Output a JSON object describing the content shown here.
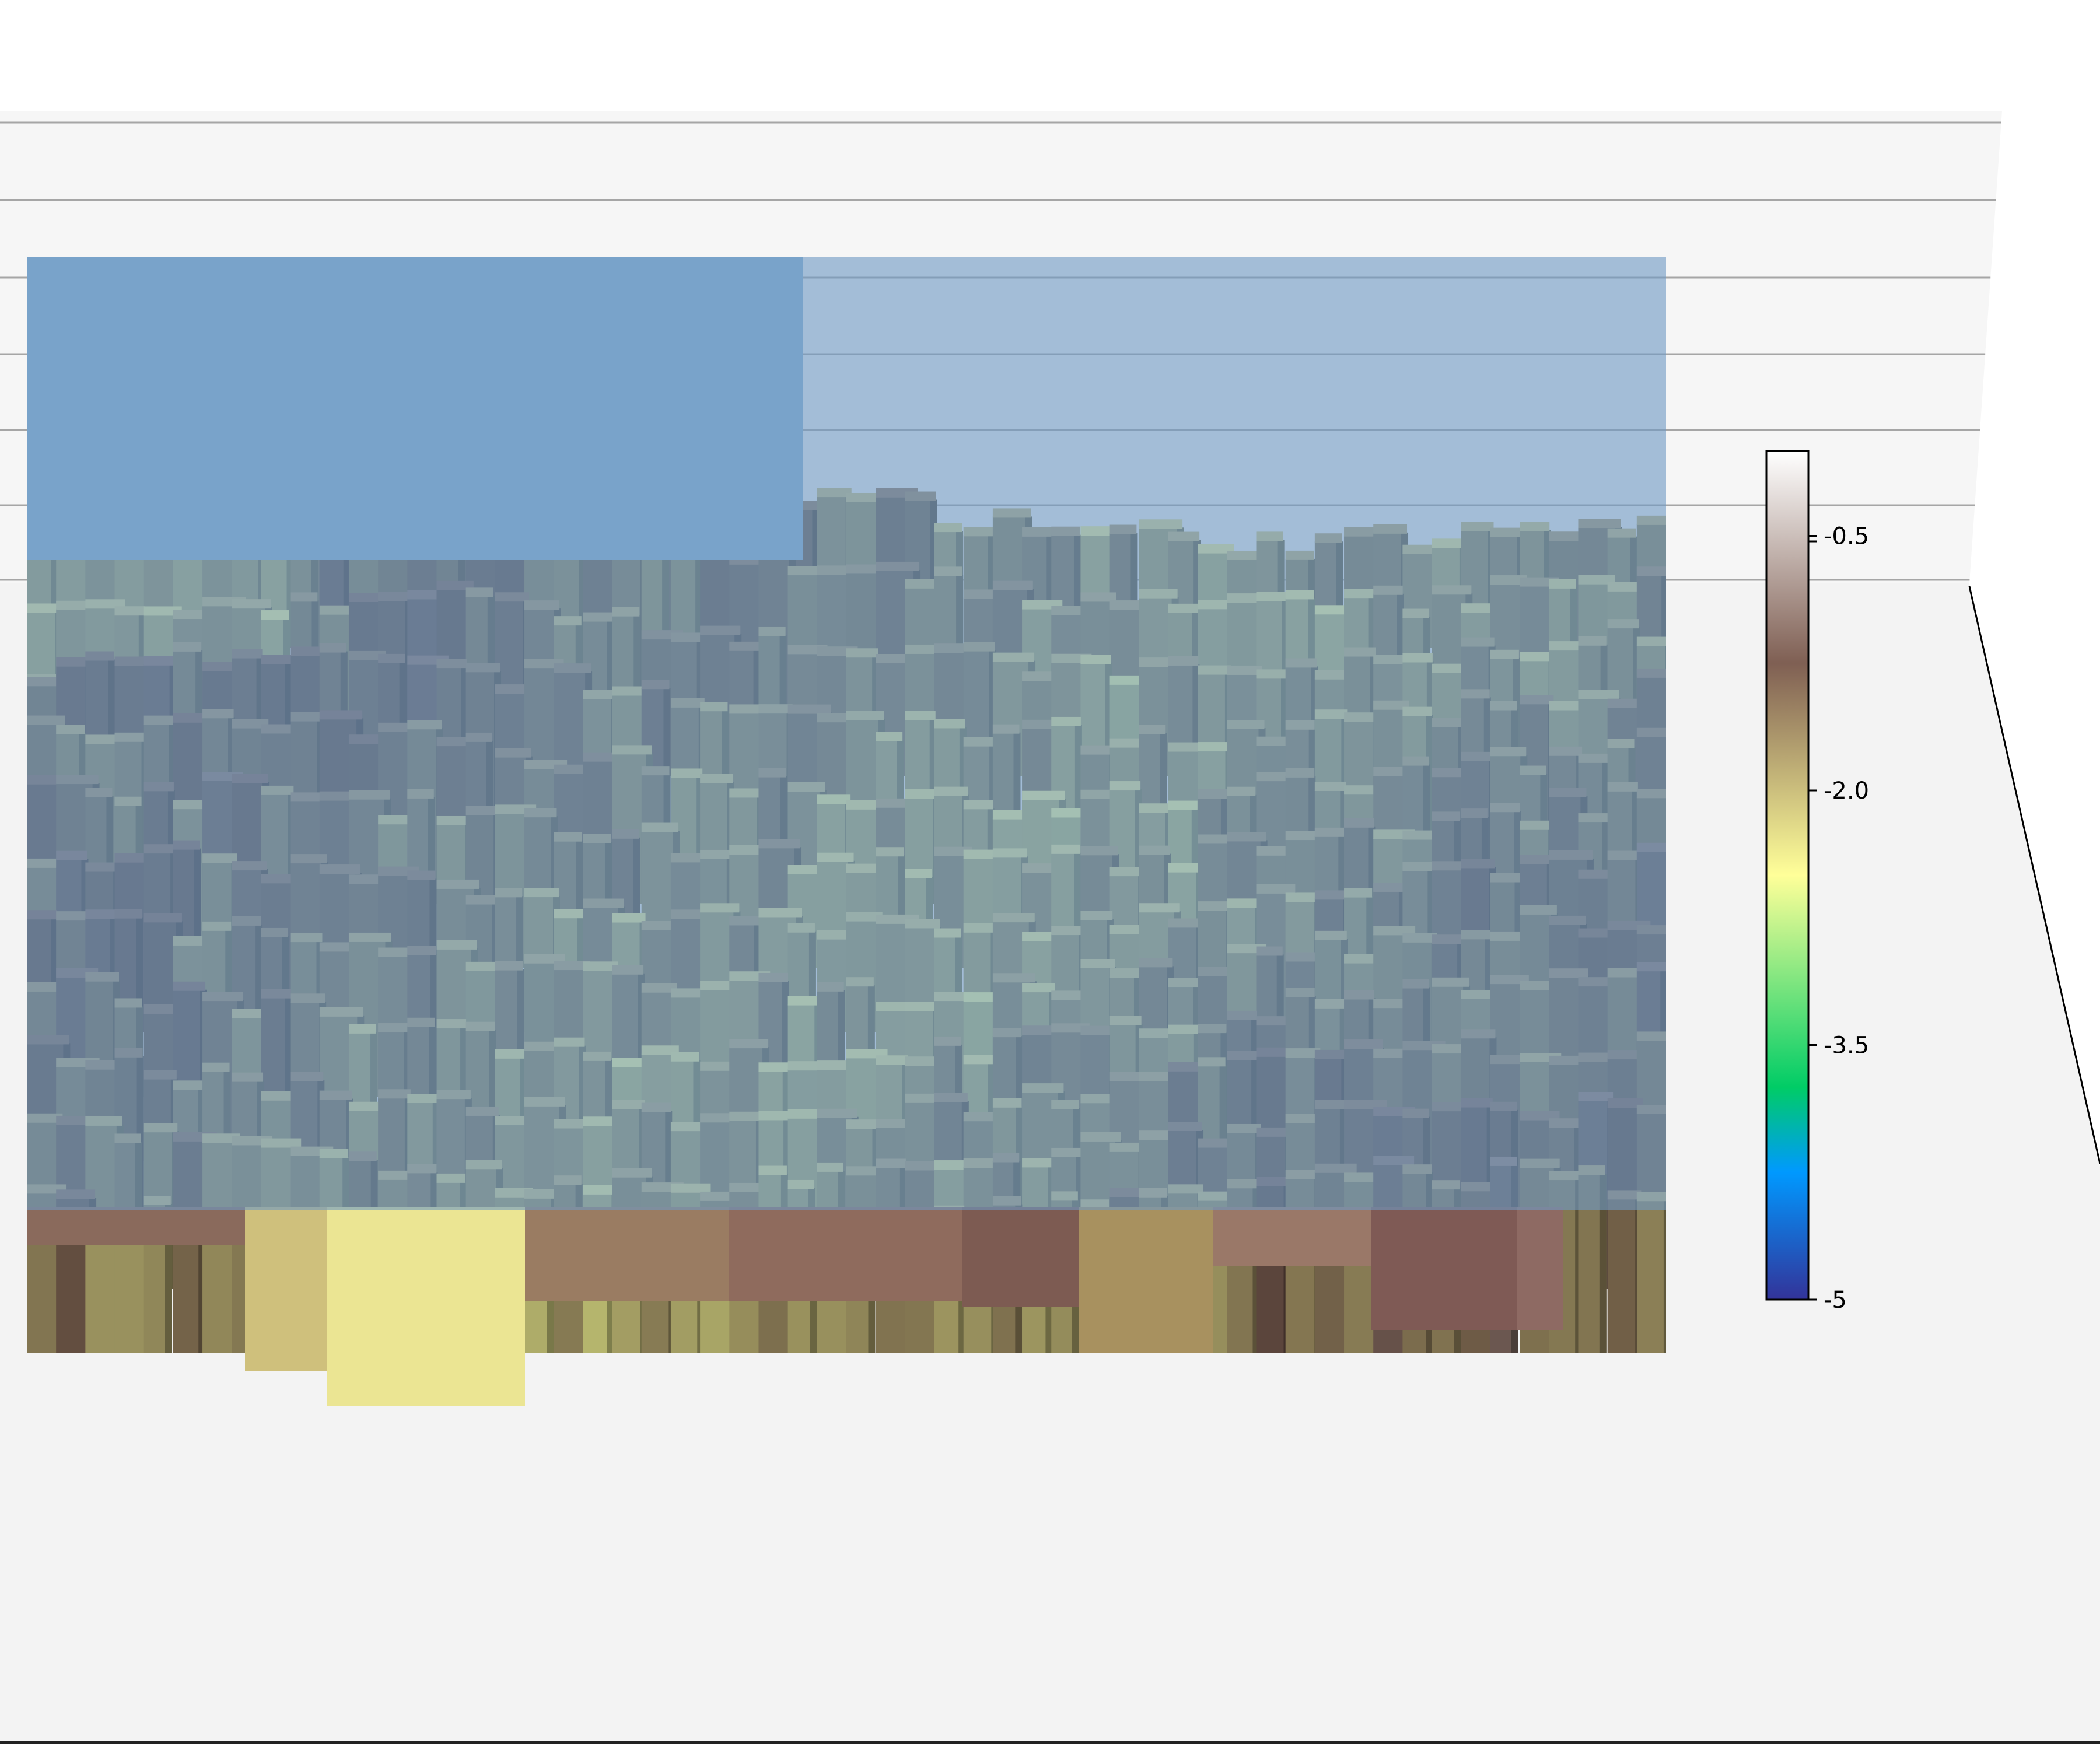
{
  "chart_data": {
    "type": "bar3d",
    "title": "",
    "xlabel": "",
    "ylabel": "",
    "zlabel": "",
    "grid": true,
    "view": "3D perspective, viewed nearly edge-on from the front",
    "surface": {
      "description": "3D voxel/bar terrain of cells rendered with the terrain colormap, overlaid by a translucent steel-blue plane",
      "overlay_plane_color": "#6f9ac4",
      "approx_height_range": [
        -5,
        0
      ],
      "overlay_plane_level": -1.2
    },
    "colorbar": {
      "position": "right",
      "cmap": "terrain",
      "min": -5,
      "max": 0,
      "ticks": [
        {
          "value": -0.5,
          "label": "-0.5"
        },
        {
          "value": -2.0,
          "label": "-2.0"
        },
        {
          "value": -3.5,
          "label": "-3.5"
        },
        {
          "value": -5,
          "label": "-5"
        }
      ],
      "unlabeled_ticks": [
        0
      ]
    },
    "colors": {
      "pane_back": "#f6f6f6",
      "pane_floor": "#f3f3f3",
      "grid_line": "#a6a6a6",
      "overlay_plane": "#6f9ac4"
    }
  }
}
